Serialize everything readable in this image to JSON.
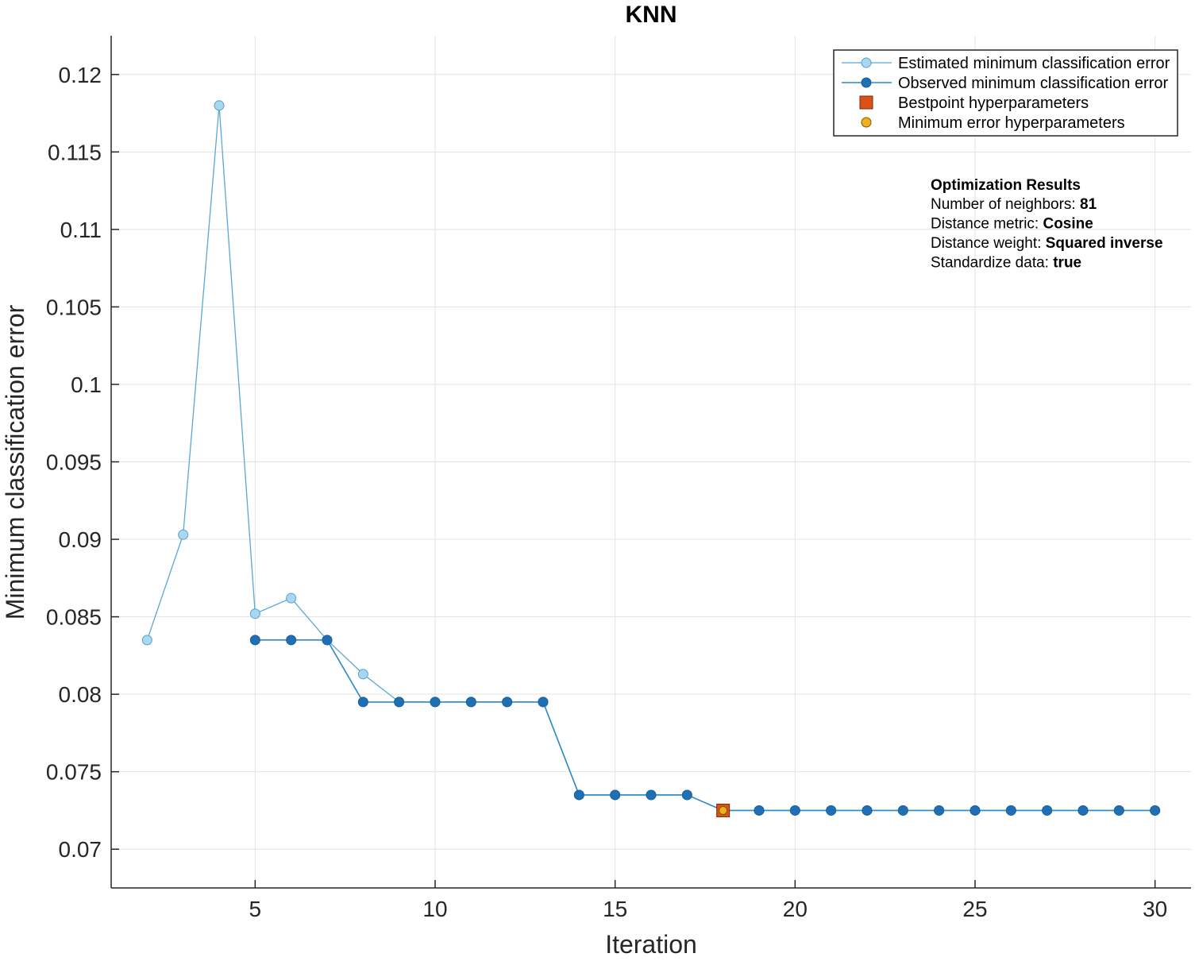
{
  "chart_data": {
    "type": "line",
    "title": "KNN",
    "xlabel": "Iteration",
    "ylabel": "Minimum classification error",
    "xlim": [
      1,
      31
    ],
    "ylim": [
      0.0675,
      0.1225
    ],
    "xticks": [
      5,
      10,
      15,
      20,
      25,
      30
    ],
    "yticks": [
      0.07,
      0.075,
      0.08,
      0.085,
      0.09,
      0.095,
      0.1,
      0.105,
      0.11,
      0.115,
      0.12
    ],
    "ytick_labels": [
      "0.07",
      "0.075",
      "0.08",
      "0.085",
      "0.09",
      "0.095",
      "0.1",
      "0.105",
      "0.11",
      "0.115",
      "0.12"
    ],
    "grid": true,
    "legend_position": "top-right",
    "series": [
      {
        "name": "Estimated minimum classification error",
        "color": "#a8d8f0",
        "x": [
          2,
          3,
          4,
          5,
          6,
          7,
          8,
          9,
          10,
          11,
          12,
          13,
          14,
          15,
          16,
          17,
          18,
          19,
          20,
          21,
          22,
          23,
          24,
          25,
          26,
          27,
          28,
          29,
          30
        ],
        "y": [
          0.0835,
          0.0903,
          0.118,
          0.0852,
          0.0862,
          0.0835,
          0.0813,
          0.0795,
          0.0795,
          0.0795,
          0.0795,
          0.0795,
          0.0735,
          0.0735,
          0.0735,
          0.0735,
          0.0725,
          0.0725,
          0.0725,
          0.0725,
          0.0725,
          0.0725,
          0.0725,
          0.0725,
          0.0725,
          0.0725,
          0.0725,
          0.0725,
          0.0725
        ]
      },
      {
        "name": "Observed minimum classification error",
        "color": "#1f6fb5",
        "x": [
          5,
          6,
          7,
          8,
          9,
          10,
          11,
          12,
          13,
          14,
          15,
          16,
          17,
          18,
          19,
          20,
          21,
          22,
          23,
          24,
          25,
          26,
          27,
          28,
          29,
          30
        ],
        "y": [
          0.0835,
          0.0835,
          0.0835,
          0.0795,
          0.0795,
          0.0795,
          0.0795,
          0.0795,
          0.0795,
          0.0735,
          0.0735,
          0.0735,
          0.0735,
          0.0725,
          0.0725,
          0.0725,
          0.0725,
          0.0725,
          0.0725,
          0.0725,
          0.0725,
          0.0725,
          0.0725,
          0.0725,
          0.0725,
          0.0725
        ]
      }
    ],
    "markers": [
      {
        "name": "Bestpoint hyperparameters",
        "shape": "square",
        "color": "#d95319",
        "x": 18,
        "y": 0.0725
      },
      {
        "name": "Minimum error hyperparameters",
        "shape": "circle",
        "color": "#edb120",
        "x": 18,
        "y": 0.0725
      }
    ],
    "annotation": {
      "heading": "Optimization Results",
      "lines": [
        {
          "label": "Number of neighbors: ",
          "value": "81"
        },
        {
          "label": "Distance metric: ",
          "value": "Cosine"
        },
        {
          "label": "Distance weight: ",
          "value": "Squared inverse"
        },
        {
          "label": "Standardize data: ",
          "value": "true"
        }
      ]
    }
  }
}
